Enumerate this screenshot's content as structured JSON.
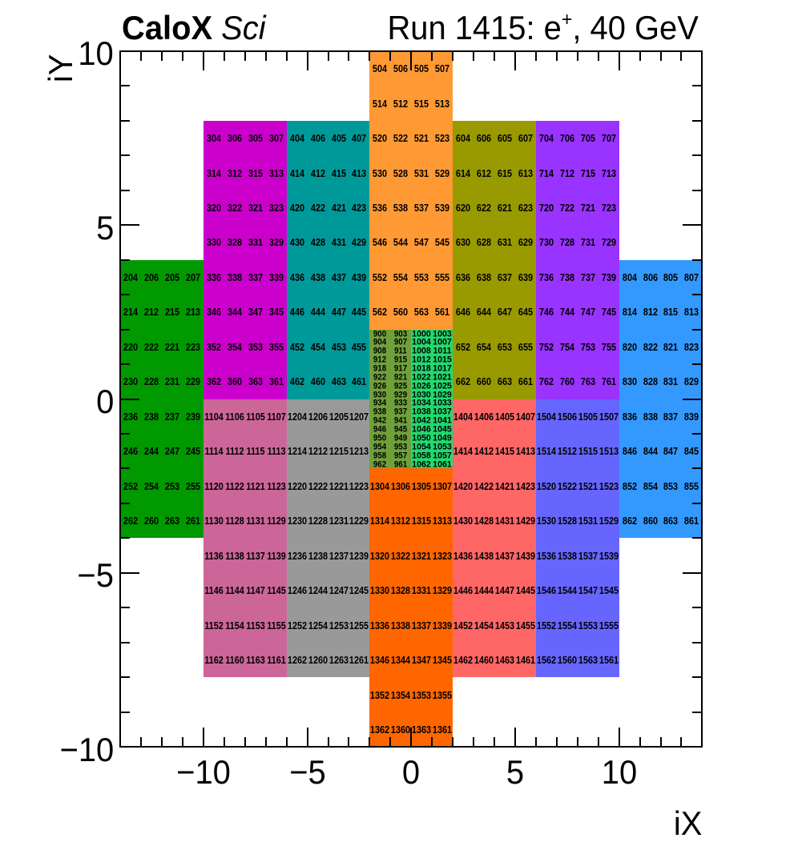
{
  "titles": {
    "left_bold": "CaloX",
    "left_italic": "Sci",
    "right_prefix": "Run 1415: e",
    "right_sup": "+",
    "right_suffix": ", 40 GeV"
  },
  "chart_data": {
    "type": "heatmap",
    "title": "CaloX Sci",
    "subtitle": "Run 1415: e+, 40 GeV",
    "xlabel": "iX",
    "ylabel": "iY",
    "xlim": [
      -14,
      14
    ],
    "ylim": [
      -10,
      10
    ],
    "grid": false,
    "legend": false,
    "x_major_ticks": [
      -10,
      -5,
      0,
      5,
      10
    ],
    "x_tick_labels": [
      "−10",
      "−5",
      "0",
      "5",
      "10"
    ],
    "y_major_ticks": [
      -10,
      -5,
      0,
      5,
      10
    ],
    "y_tick_labels": [
      "−10",
      "−5",
      "0",
      "5",
      "10"
    ],
    "minor_tick_step": 1,
    "modules": [
      {
        "name": "module-200",
        "color": "#009900",
        "x": [
          -14,
          -10
        ],
        "y": [
          -4,
          4
        ],
        "small": false,
        "rows": [
          [
            204,
            206,
            205,
            207
          ],
          [
            214,
            212,
            215,
            213
          ],
          [
            220,
            222,
            221,
            223
          ],
          [
            230,
            228,
            231,
            229
          ],
          [
            236,
            238,
            237,
            239
          ],
          [
            246,
            244,
            247,
            245
          ],
          [
            252,
            254,
            253,
            255
          ],
          [
            262,
            260,
            263,
            261
          ]
        ]
      },
      {
        "name": "module-300",
        "color": "#CC00CC",
        "x": [
          -10,
          -6
        ],
        "y": [
          0,
          8
        ],
        "small": false,
        "rows": [
          [
            304,
            306,
            305,
            307
          ],
          [
            314,
            312,
            315,
            313
          ],
          [
            320,
            322,
            321,
            323
          ],
          [
            330,
            328,
            331,
            329
          ],
          [
            336,
            338,
            337,
            339
          ],
          [
            346,
            344,
            347,
            345
          ],
          [
            352,
            354,
            353,
            355
          ],
          [
            362,
            360,
            363,
            361
          ]
        ]
      },
      {
        "name": "module-400",
        "color": "#009999",
        "x": [
          -6,
          -2
        ],
        "y": [
          0,
          8
        ],
        "small": false,
        "rows": [
          [
            404,
            406,
            405,
            407
          ],
          [
            414,
            412,
            415,
            413
          ],
          [
            420,
            422,
            421,
            423
          ],
          [
            430,
            428,
            431,
            429
          ],
          [
            436,
            438,
            437,
            439
          ],
          [
            446,
            444,
            447,
            445
          ],
          [
            452,
            454,
            453,
            455
          ],
          [
            462,
            460,
            463,
            461
          ]
        ]
      },
      {
        "name": "module-500",
        "color": "#FF9933",
        "x": [
          -2,
          2
        ],
        "y": [
          2,
          10
        ],
        "small": false,
        "rows": [
          [
            504,
            506,
            505,
            507
          ],
          [
            514,
            512,
            515,
            513
          ],
          [
            520,
            522,
            521,
            523
          ],
          [
            530,
            528,
            531,
            529
          ],
          [
            536,
            538,
            537,
            539
          ],
          [
            546,
            544,
            547,
            545
          ],
          [
            552,
            554,
            553,
            555
          ],
          [
            562,
            560,
            563,
            561
          ]
        ]
      },
      {
        "name": "module-600",
        "color": "#999900",
        "x": [
          2,
          6
        ],
        "y": [
          0,
          8
        ],
        "small": false,
        "rows": [
          [
            604,
            606,
            605,
            607
          ],
          [
            614,
            612,
            615,
            613
          ],
          [
            620,
            622,
            621,
            623
          ],
          [
            630,
            628,
            631,
            629
          ],
          [
            636,
            638,
            637,
            639
          ],
          [
            646,
            644,
            647,
            645
          ],
          [
            652,
            654,
            653,
            655
          ],
          [
            662,
            660,
            663,
            661
          ]
        ]
      },
      {
        "name": "module-700",
        "color": "#9933FF",
        "x": [
          6,
          10
        ],
        "y": [
          0,
          8
        ],
        "small": false,
        "rows": [
          [
            704,
            706,
            705,
            707
          ],
          [
            714,
            712,
            715,
            713
          ],
          [
            720,
            722,
            721,
            723
          ],
          [
            730,
            728,
            731,
            729
          ],
          [
            736,
            738,
            737,
            739
          ],
          [
            746,
            744,
            747,
            745
          ],
          [
            752,
            754,
            753,
            755
          ],
          [
            762,
            760,
            763,
            761
          ]
        ]
      },
      {
        "name": "module-800",
        "color": "#3399FF",
        "x": [
          10,
          14
        ],
        "y": [
          -4,
          4
        ],
        "small": false,
        "rows": [
          [
            804,
            806,
            805,
            807
          ],
          [
            814,
            812,
            815,
            813
          ],
          [
            820,
            822,
            821,
            823
          ],
          [
            830,
            828,
            831,
            829
          ],
          [
            836,
            838,
            837,
            839
          ],
          [
            846,
            844,
            847,
            845
          ],
          [
            852,
            854,
            853,
            855
          ],
          [
            862,
            860,
            863,
            861
          ]
        ]
      },
      {
        "name": "module-900",
        "color": "#6FA03C",
        "x": [
          -2,
          0
        ],
        "y": [
          -2,
          2
        ],
        "small": true,
        "rows": [
          [
            900,
            903
          ],
          [
            904,
            907
          ],
          [
            908,
            911
          ],
          [
            912,
            915
          ],
          [
            918,
            917
          ],
          [
            922,
            921
          ],
          [
            926,
            925
          ],
          [
            930,
            929
          ],
          [
            934,
            933
          ],
          [
            938,
            937
          ],
          [
            942,
            941
          ],
          [
            946,
            945
          ],
          [
            950,
            949
          ],
          [
            954,
            953
          ],
          [
            958,
            957
          ],
          [
            962,
            961
          ]
        ]
      },
      {
        "name": "module-1000",
        "color": "#22D96F",
        "x": [
          0,
          2
        ],
        "y": [
          -2,
          2
        ],
        "small": true,
        "rows": [
          [
            1000,
            1003
          ],
          [
            1004,
            1007
          ],
          [
            1008,
            1011
          ],
          [
            1012,
            1015
          ],
          [
            1018,
            1017
          ],
          [
            1022,
            1021
          ],
          [
            1026,
            1025
          ],
          [
            1030,
            1029
          ],
          [
            1034,
            1033
          ],
          [
            1038,
            1037
          ],
          [
            1042,
            1041
          ],
          [
            1046,
            1045
          ],
          [
            1050,
            1049
          ],
          [
            1054,
            1053
          ],
          [
            1058,
            1057
          ],
          [
            1062,
            1061
          ]
        ]
      },
      {
        "name": "module-1100",
        "color": "#CC6699",
        "x": [
          -10,
          -6
        ],
        "y": [
          -8,
          0
        ],
        "small": false,
        "rows": [
          [
            1104,
            1106,
            1105,
            1107
          ],
          [
            1114,
            1112,
            1115,
            1113
          ],
          [
            1120,
            1122,
            1121,
            1123
          ],
          [
            1130,
            1128,
            1131,
            1129
          ],
          [
            1136,
            1138,
            1137,
            1139
          ],
          [
            1146,
            1144,
            1147,
            1145
          ],
          [
            1152,
            1154,
            1153,
            1155
          ],
          [
            1162,
            1160,
            1163,
            1161
          ]
        ]
      },
      {
        "name": "module-1200",
        "color": "#999999",
        "x": [
          -6,
          -2
        ],
        "y": [
          -8,
          0
        ],
        "small": false,
        "rows": [
          [
            1204,
            1206,
            1205,
            1207
          ],
          [
            1214,
            1212,
            1215,
            1213
          ],
          [
            1220,
            1222,
            1221,
            1223
          ],
          [
            1230,
            1228,
            1231,
            1229
          ],
          [
            1236,
            1238,
            1237,
            1239
          ],
          [
            1246,
            1244,
            1247,
            1245
          ],
          [
            1252,
            1254,
            1253,
            1255
          ],
          [
            1262,
            1260,
            1263,
            1261
          ]
        ]
      },
      {
        "name": "module-1300",
        "color": "#FF6600",
        "x": [
          -2,
          2
        ],
        "y": [
          -10,
          -2
        ],
        "small": false,
        "rows": [
          [
            1304,
            1306,
            1305,
            1307
          ],
          [
            1314,
            1312,
            1315,
            1313
          ],
          [
            1320,
            1322,
            1321,
            1323
          ],
          [
            1330,
            1328,
            1331,
            1329
          ],
          [
            1336,
            1338,
            1337,
            1339
          ],
          [
            1346,
            1344,
            1347,
            1345
          ],
          [
            1352,
            1354,
            1353,
            1355
          ],
          [
            1362,
            1360,
            1363,
            1361
          ]
        ]
      },
      {
        "name": "module-1400",
        "color": "#FF6666",
        "x": [
          2,
          6
        ],
        "y": [
          -8,
          0
        ],
        "small": false,
        "rows": [
          [
            1404,
            1406,
            1405,
            1407
          ],
          [
            1414,
            1412,
            1415,
            1413
          ],
          [
            1420,
            1422,
            1421,
            1423
          ],
          [
            1430,
            1428,
            1431,
            1429
          ],
          [
            1436,
            1438,
            1437,
            1439
          ],
          [
            1446,
            1444,
            1447,
            1445
          ],
          [
            1452,
            1454,
            1453,
            1455
          ],
          [
            1462,
            1460,
            1463,
            1461
          ]
        ]
      },
      {
        "name": "module-1500",
        "color": "#6666FF",
        "x": [
          6,
          10
        ],
        "y": [
          -8,
          0
        ],
        "small": false,
        "rows": [
          [
            1504,
            1506,
            1505,
            1507
          ],
          [
            1514,
            1512,
            1515,
            1513
          ],
          [
            1520,
            1522,
            1521,
            1523
          ],
          [
            1530,
            1528,
            1531,
            1529
          ],
          [
            1536,
            1538,
            1537,
            1539
          ],
          [
            1546,
            1544,
            1547,
            1545
          ],
          [
            1552,
            1554,
            1553,
            1555
          ],
          [
            1562,
            1560,
            1563,
            1561
          ]
        ]
      }
    ]
  }
}
